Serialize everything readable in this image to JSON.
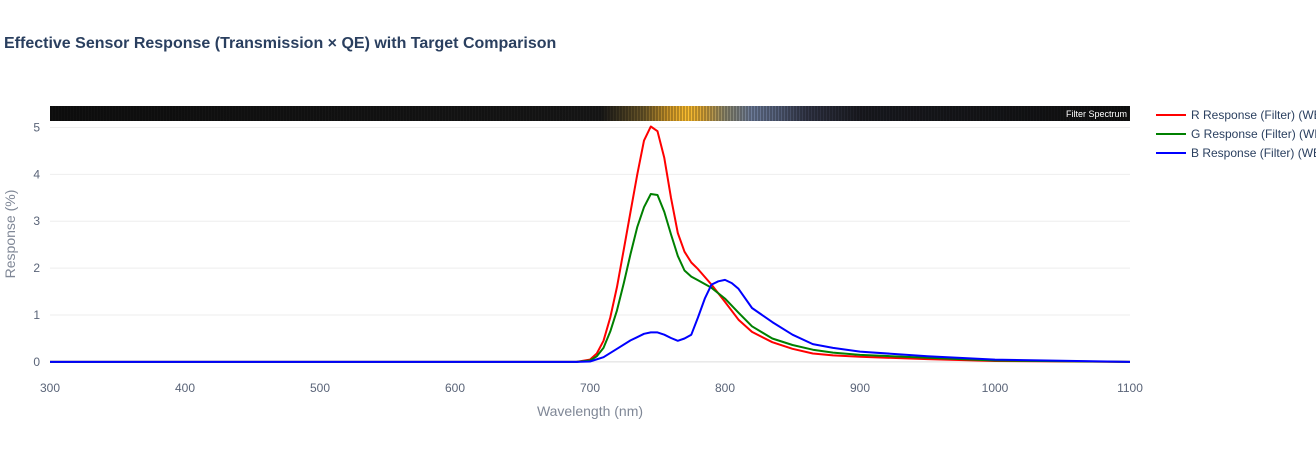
{
  "chart_data": {
    "type": "line",
    "title": "Effective Sensor Response (Transmission × QE) with Target Comparison",
    "xlabel": "Wavelength (nm)",
    "ylabel": "Response (%)",
    "xlim": [
      300,
      1100
    ],
    "ylim": [
      -0.3,
      5.5
    ],
    "xticks": [
      300,
      400,
      500,
      600,
      700,
      800,
      900,
      1000,
      1100
    ],
    "yticks": [
      0,
      1,
      2,
      3,
      4,
      5
    ],
    "grid": "horizontal",
    "legend": "right",
    "strip_label": "Filter Spectrum",
    "series": [
      {
        "name": "R Response (Filter) (WB",
        "color": "#ff0000",
        "x": [
          300,
          690,
          700,
          705,
          710,
          715,
          720,
          725,
          730,
          735,
          740,
          745,
          750,
          755,
          760,
          765,
          770,
          775,
          780,
          790,
          800,
          810,
          820,
          835,
          850,
          865,
          880,
          900,
          950,
          1000,
          1100
        ],
        "y": [
          0,
          0,
          0.05,
          0.18,
          0.45,
          0.95,
          1.6,
          2.4,
          3.2,
          4.0,
          4.72,
          5.02,
          4.92,
          4.35,
          3.5,
          2.75,
          2.35,
          2.12,
          1.98,
          1.65,
          1.28,
          0.9,
          0.64,
          0.42,
          0.28,
          0.18,
          0.14,
          0.11,
          0.06,
          0.02,
          0
        ]
      },
      {
        "name": "G Response (Filter) (WB",
        "color": "#008000",
        "x": [
          300,
          690,
          700,
          705,
          710,
          715,
          720,
          725,
          730,
          735,
          740,
          745,
          750,
          755,
          760,
          765,
          770,
          775,
          780,
          790,
          800,
          810,
          820,
          835,
          850,
          865,
          880,
          900,
          950,
          1000,
          1100
        ],
        "y": [
          0,
          0,
          0.03,
          0.12,
          0.3,
          0.65,
          1.1,
          1.68,
          2.3,
          2.88,
          3.3,
          3.58,
          3.56,
          3.2,
          2.72,
          2.26,
          1.95,
          1.82,
          1.74,
          1.58,
          1.35,
          1.05,
          0.76,
          0.5,
          0.36,
          0.26,
          0.2,
          0.15,
          0.09,
          0.03,
          0
        ]
      },
      {
        "name": "B Response (Filter) (WB",
        "color": "#0000ff",
        "x": [
          300,
          690,
          700,
          710,
          720,
          730,
          740,
          745,
          750,
          755,
          760,
          765,
          770,
          775,
          780,
          785,
          790,
          795,
          800,
          805,
          810,
          820,
          835,
          850,
          865,
          880,
          900,
          950,
          1000,
          1100
        ],
        "y": [
          0,
          0,
          0.01,
          0.1,
          0.28,
          0.46,
          0.6,
          0.63,
          0.63,
          0.58,
          0.51,
          0.45,
          0.5,
          0.58,
          0.95,
          1.35,
          1.65,
          1.72,
          1.75,
          1.68,
          1.56,
          1.15,
          0.85,
          0.58,
          0.38,
          0.3,
          0.22,
          0.12,
          0.05,
          0
        ]
      }
    ]
  }
}
